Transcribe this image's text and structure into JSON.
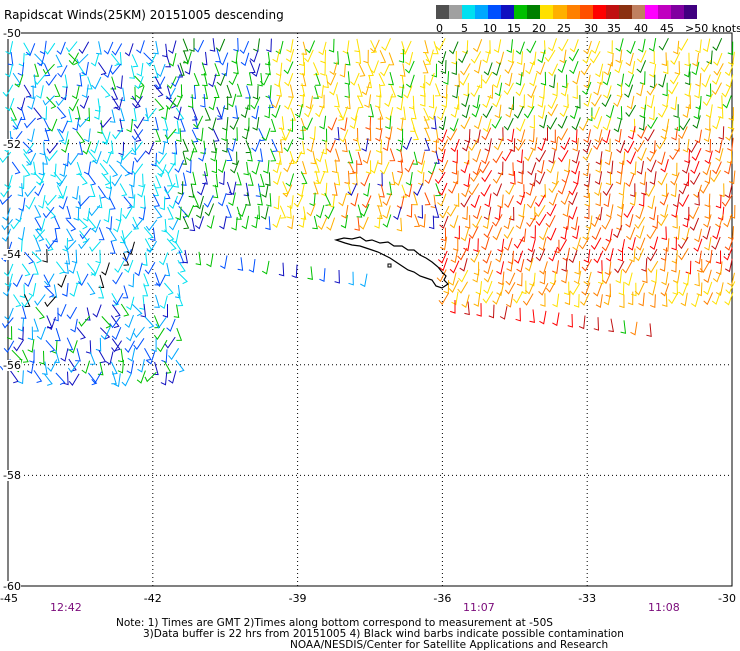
{
  "title": "Rapidscat Winds(25KM) 20151005 descending",
  "legend": {
    "labels": [
      "0",
      "5",
      "10",
      "15",
      "20",
      "25",
      "30",
      "35",
      "40",
      "45",
      ">50 knots"
    ],
    "colors": [
      "#505050",
      "#a0a0a0",
      "#00e0f0",
      "#00a8ff",
      "#0050ff",
      "#1010c0",
      "#00c000",
      "#008000",
      "#ffe000",
      "#ffb000",
      "#ff8000",
      "#ff5000",
      "#ff0000",
      "#c01010",
      "#8a3010",
      "#c08060",
      "#ff00ff",
      "#c000c0",
      "#8000a0",
      "#400080"
    ]
  },
  "axes": {
    "lat_labels": [
      "-50",
      "-52",
      "-54",
      "-56",
      "-58",
      "-60"
    ],
    "lon_labels": [
      "-45",
      "-42",
      "-39",
      "-36",
      "-33",
      "-30"
    ]
  },
  "times": [
    "12:42",
    "11:07",
    "11:08"
  ],
  "notes": {
    "line1": "Note: 1) Times are GMT 2)Times along bottom correspond to measurement at -50S",
    "line2": "3)Data buffer is 22 hrs from 20151005 4) Black wind barbs indicate possible contamination",
    "line3": "NOAA/NESDIS/Center for Satellite Applications and Research"
  },
  "map": {
    "extent": {
      "lon_min": -45,
      "lon_max": -30,
      "lat_min": -60,
      "lat_max": -50
    },
    "grid_spacing": {
      "lon": 3,
      "lat": 2
    },
    "land_outline": "South Georgia island, black coastline outline",
    "wind_swaths": [
      {
        "name": "western swath (12:42)",
        "lon_range": [
          -45,
          -41.5
        ],
        "lat_range": [
          -56.5,
          -50
        ],
        "dominant_speeds_knots": "5-20",
        "colors": [
          "blue",
          "cyan",
          "green"
        ]
      },
      {
        "name": "central swath (11:07)",
        "lon_range": [
          -41.5,
          -36
        ],
        "lat_range": [
          -53.5,
          -50
        ],
        "dominant_speeds_knots": "15-25",
        "colors": [
          "green",
          "yellow",
          "orange"
        ]
      },
      {
        "name": "eastern swath (11:08)",
        "lon_range": [
          -36,
          -30
        ],
        "lat_range": [
          -54.7,
          -50
        ],
        "dominant_speeds_knots": "20-35",
        "colors": [
          "yellow",
          "orange",
          "red",
          "green"
        ]
      }
    ]
  }
}
